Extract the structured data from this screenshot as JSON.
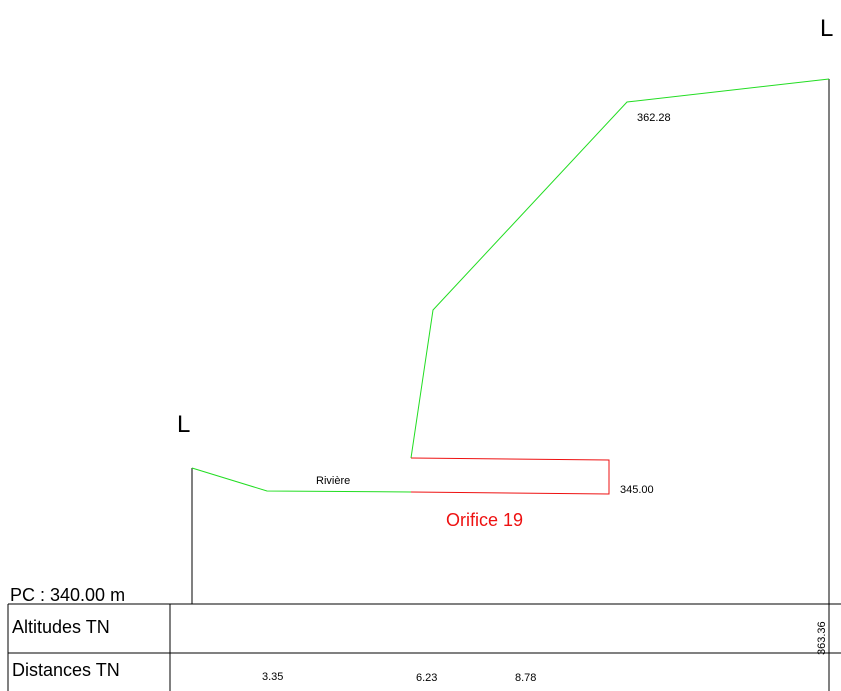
{
  "section": {
    "marker_left": "L",
    "marker_right": "L",
    "river_label": "Rivière",
    "orifice_label": "Orifice 19",
    "orifice_level": "345.00",
    "top_level": "362.28",
    "reference_plane": "PC : 340.00 m"
  },
  "table": {
    "row_altitudes_label": "Altitudes TN",
    "row_distances_label": "Distances TN",
    "altitude_values": [
      "363.36"
    ],
    "distance_values": [
      "3.35",
      "6.23",
      "8.78"
    ]
  },
  "colors": {
    "terrain": "#22dd22",
    "orifice": "#ee1111",
    "frame": "#000000"
  }
}
